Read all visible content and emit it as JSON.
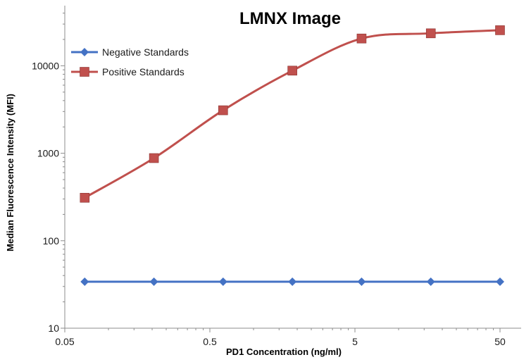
{
  "chart_data": {
    "type": "line",
    "title": "LMNX Image",
    "xlabel": "PD1 Concentration  (ng/ml)",
    "ylabel": "Median Fluorescence Intensity (MFI)",
    "x_scale": "log",
    "y_scale": "log",
    "xlim": [
      0.05,
      50
    ],
    "ylim": [
      10,
      40000
    ],
    "x_ticks": [
      0.05,
      0.5,
      5,
      50
    ],
    "x_tick_labels": [
      "0.05",
      "0.5",
      "5",
      "50"
    ],
    "y_ticks": [
      10,
      100,
      1000,
      10000
    ],
    "y_tick_labels": [
      "10",
      "100",
      "1000",
      "10000"
    ],
    "grid": false,
    "legend_position": "top-left",
    "series": [
      {
        "name": "Negative Standards",
        "color": "#4472c4",
        "marker": "diamond",
        "x": [
          0.0686,
          0.2058,
          0.617,
          1.852,
          5.556,
          16.67,
          50
        ],
        "y": [
          34,
          34,
          34,
          34,
          34,
          34,
          34
        ]
      },
      {
        "name": "Positive Standards",
        "color": "#c0504d",
        "marker": "square",
        "x": [
          0.0686,
          0.2058,
          0.617,
          1.852,
          5.556,
          16.67,
          50
        ],
        "y": [
          310,
          880,
          3100,
          8800,
          20500,
          23500,
          25500
        ]
      }
    ]
  }
}
